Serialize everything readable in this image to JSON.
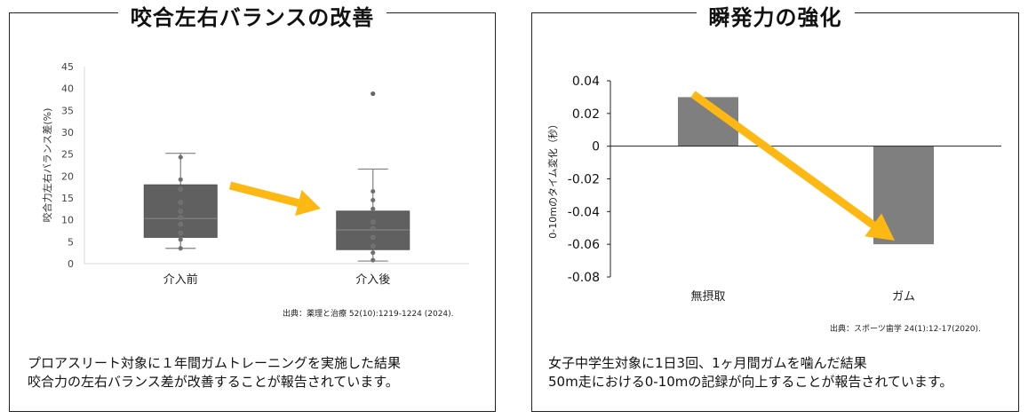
{
  "panels": [
    {
      "title": "咬合左右バランスの改善",
      "source": "出典：薬理と治療 52(10):1219-1224 (2024).",
      "desc_lines": [
        "プロアスリート対象に１年間ガムトレーニングを実施した結果",
        "咬合力の左右バランス差が改善することが報告されています。"
      ]
    },
    {
      "title": "瞬発力の強化",
      "source": "出典：スポーツ歯学 24(1):12-17(2020).",
      "desc_lines": [
        "女子中学生対象に1日3回、1ヶ月間ガムを噛んだ結果",
        "50m走における0-10mの記録が向上することが報告されています。"
      ]
    }
  ],
  "chart_data": [
    {
      "type": "box",
      "categories": [
        "介入前",
        "介入後"
      ],
      "ylabel": "咬合力左右バランス差(%)",
      "ylim": [
        0,
        45
      ],
      "yticks": [
        0,
        5,
        10,
        15,
        20,
        25,
        30,
        35,
        40,
        45
      ],
      "boxes": [
        {
          "category": "介入前",
          "min": 3.5,
          "q1": 6,
          "median": 10.3,
          "q3": 18,
          "max": 25.2,
          "points": [
            3.5,
            5.5,
            7,
            9,
            10.5,
            12,
            14,
            17,
            19.2,
            24.3
          ]
        },
        {
          "category": "介入後",
          "min": 0.6,
          "q1": 3.2,
          "median": 7.7,
          "q3": 12,
          "max": 21.6,
          "outliers": [
            38.8
          ],
          "points": [
            0.8,
            2.5,
            4,
            6,
            8,
            9.5,
            12.5,
            14.5,
            16.5
          ]
        }
      ],
      "arrow_color": "#FDB813",
      "box_color": "#606060"
    },
    {
      "type": "bar",
      "categories": [
        "無摂取",
        "ガム"
      ],
      "values": [
        0.03,
        -0.06
      ],
      "ylabel": "0-10mのタイム変化（秒）",
      "ylim": [
        -0.08,
        0.04
      ],
      "yticks": [
        -0.08,
        -0.06,
        -0.04,
        -0.02,
        0,
        0.02,
        0.04
      ],
      "ytick_labels": [
        "-0.08",
        "-0.06",
        "-0.04",
        "-0.02",
        "0",
        "0.02",
        "0.04"
      ],
      "bar_color": "#7f7f7f",
      "arrow_color": "#FDB813"
    }
  ]
}
